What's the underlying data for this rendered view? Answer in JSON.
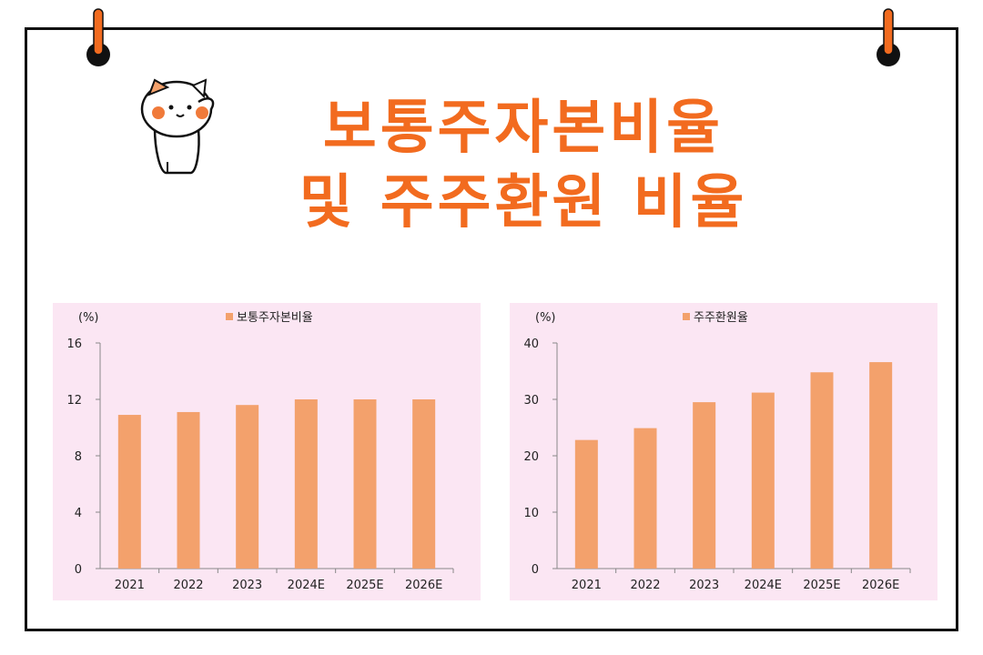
{
  "title": {
    "line1": "보통주자본비율",
    "line2": "및 주주환원 비율"
  },
  "colors": {
    "accent": "#f26b1f",
    "bar": "#f3a16c",
    "panel_bg": "#fbe6f3"
  },
  "chart_data": [
    {
      "type": "bar",
      "unit_label": "(%)",
      "categories": [
        "2021",
        "2022",
        "2023",
        "2024E",
        "2025E",
        "2026E"
      ],
      "series": [
        {
          "name": "보통주자본비율",
          "values": [
            10.9,
            11.1,
            11.6,
            12.0,
            12.0,
            12.0
          ]
        }
      ],
      "ylim": [
        0,
        16
      ],
      "yticks": [
        0,
        4,
        8,
        12,
        16
      ],
      "legend": "top-center",
      "grid": false
    },
    {
      "type": "bar",
      "unit_label": "(%)",
      "categories": [
        "2021",
        "2022",
        "2023",
        "2024E",
        "2025E",
        "2026E"
      ],
      "series": [
        {
          "name": "주주환원율",
          "values": [
            22.8,
            24.9,
            29.5,
            31.2,
            34.8,
            36.6
          ]
        }
      ],
      "ylim": [
        0,
        40
      ],
      "yticks": [
        0,
        10,
        20,
        30,
        40
      ],
      "legend": "top-center",
      "grid": false
    }
  ]
}
